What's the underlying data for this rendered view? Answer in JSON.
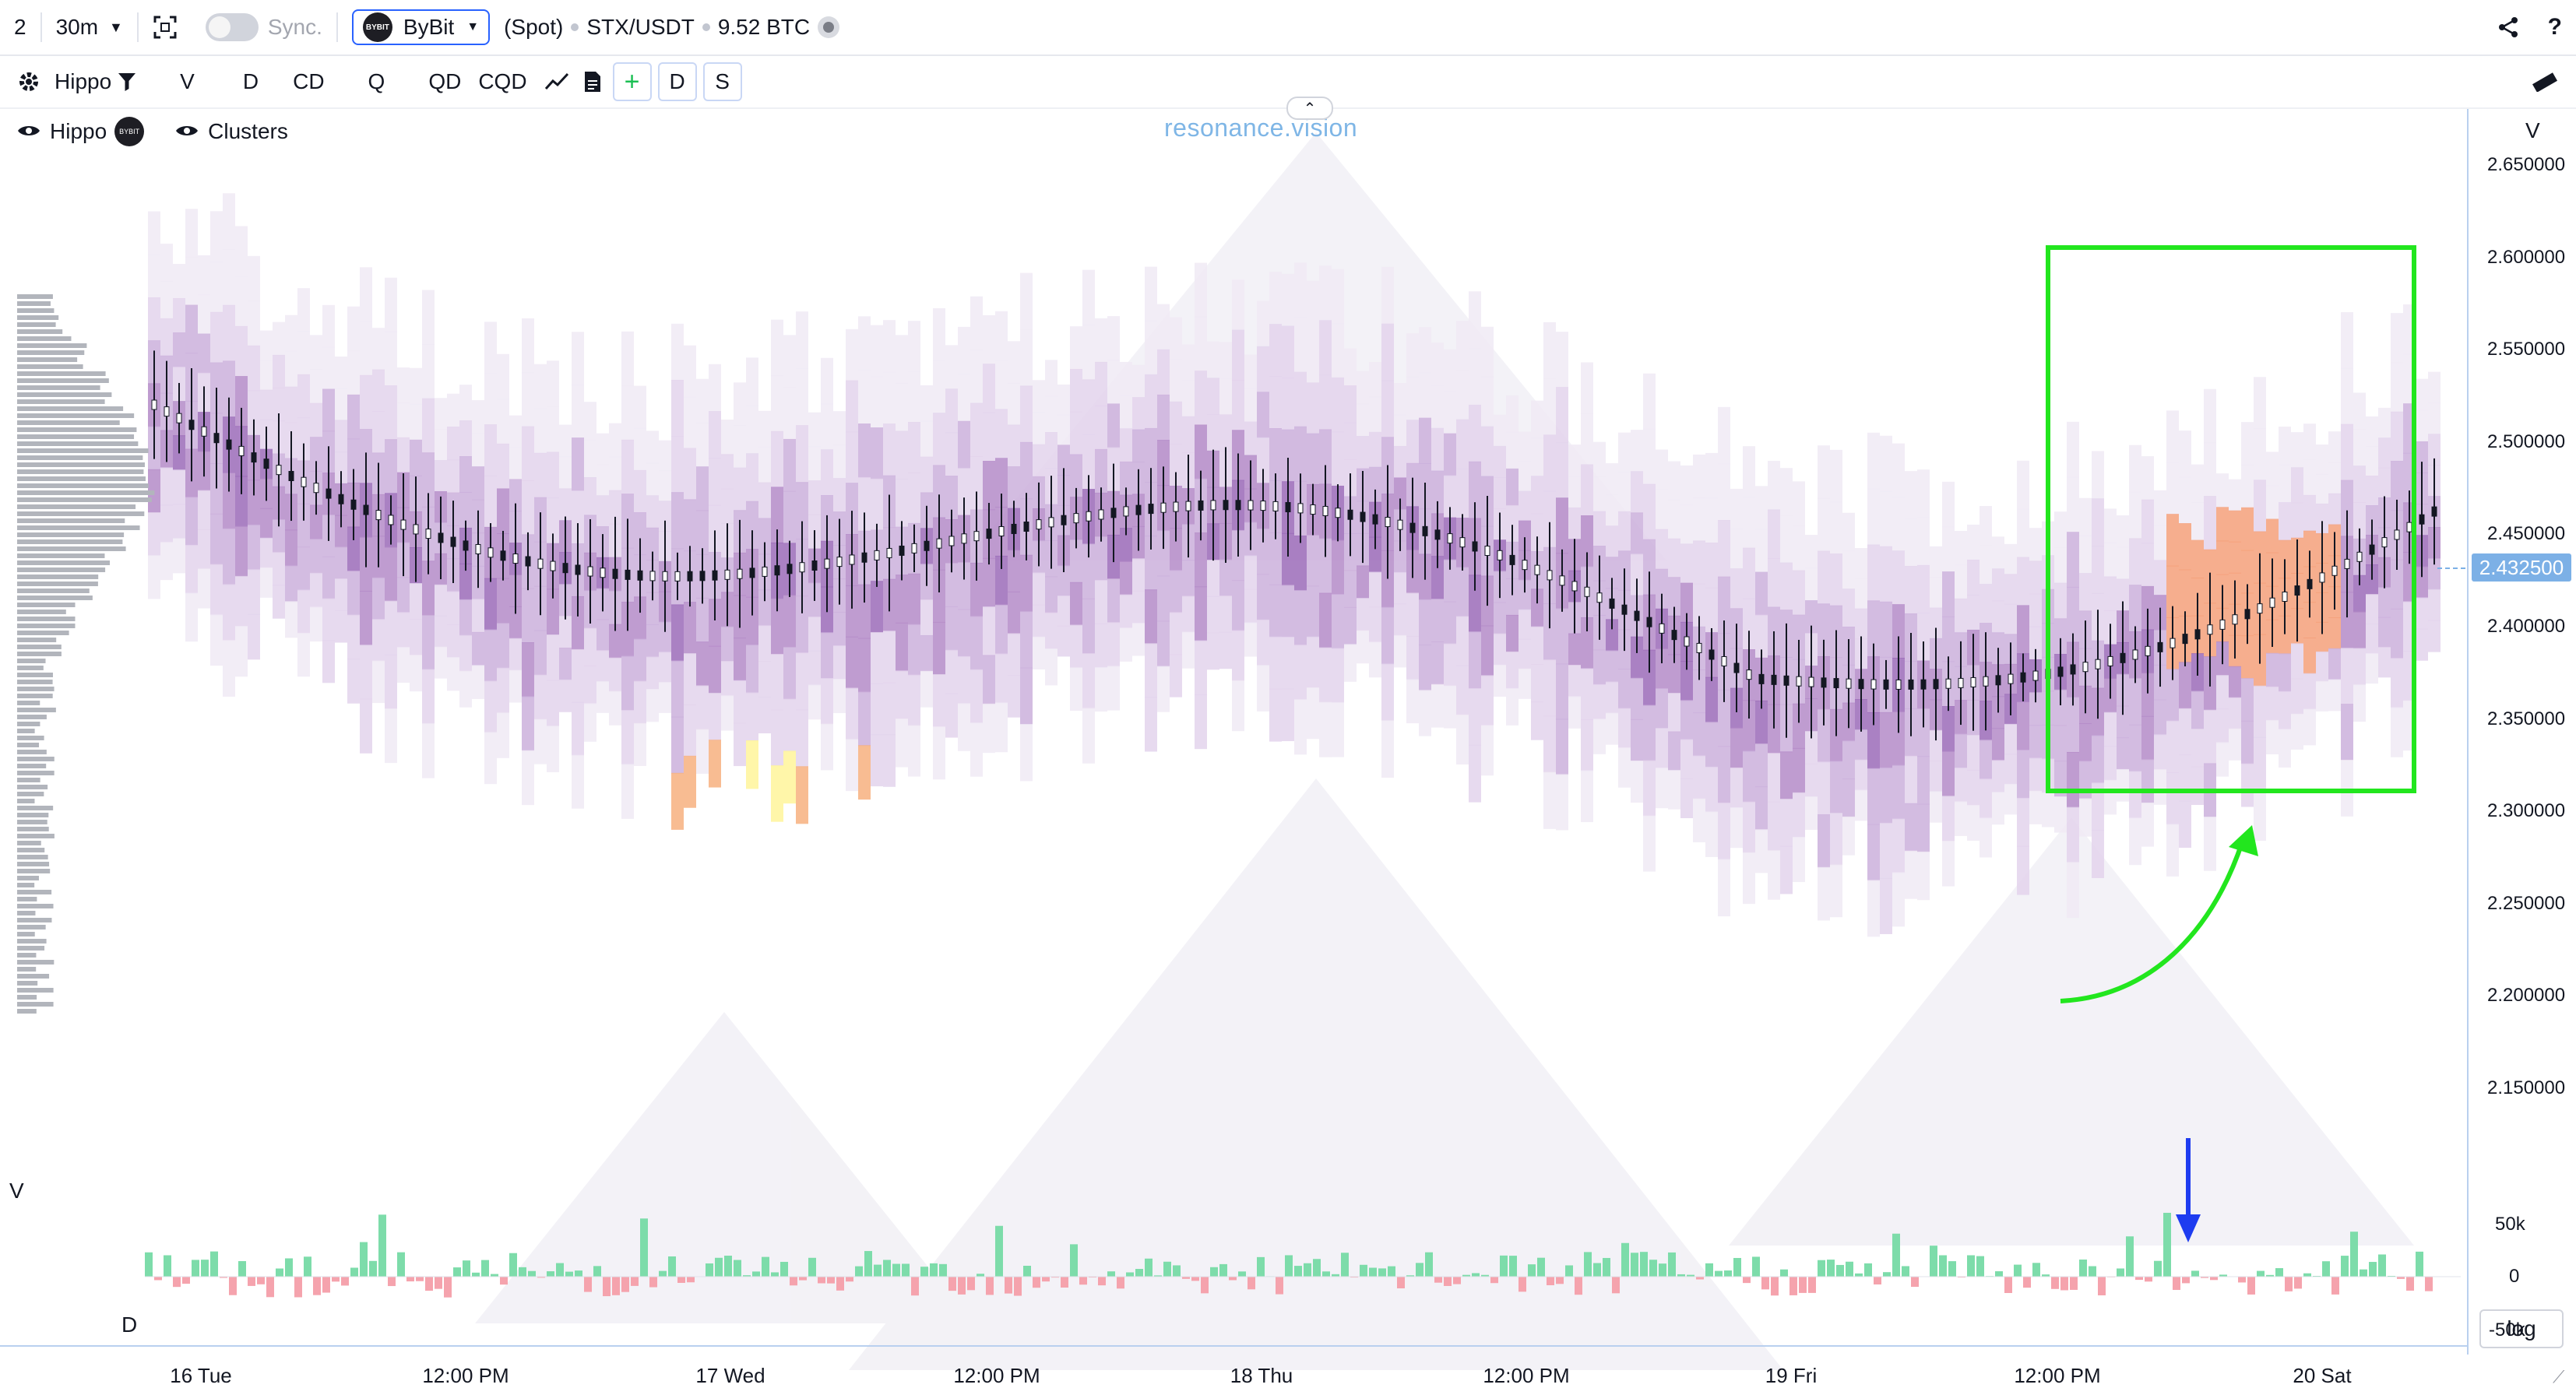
{
  "topbar": {
    "layout_count": "2",
    "interval": "30m",
    "sync_label": "Sync.",
    "exchange": "ByBit",
    "exchange_logo_text": "BYBIT",
    "market_type": "(Spot)",
    "symbol": "STX/USDT",
    "volume": "9.52 BTC",
    "help": "?"
  },
  "toolbar": {
    "template_name": "Hippo",
    "items": [
      "V",
      "D",
      "CD",
      "Q",
      "QD",
      "CQD"
    ],
    "add_label": "+",
    "d_label": "D",
    "s_label": "S"
  },
  "legend": {
    "layer1": "Hippo",
    "layer2": "Clusters"
  },
  "watermark": "resonance.vision",
  "collapse_glyph": "⌃",
  "price_axis": {
    "header": "V",
    "labels": [
      "2.650000",
      "2.600000",
      "2.550000",
      "2.500000",
      "2.450000",
      "2.400000",
      "2.350000",
      "2.300000",
      "2.250000",
      "2.200000",
      "2.150000"
    ],
    "current_price": "2.432500"
  },
  "volume_axis": {
    "labels": [
      "50k",
      "0",
      "-50k"
    ],
    "pane_top_label": "V",
    "pane_bottom_label": "D"
  },
  "time_axis": {
    "labels": [
      "16 Tue",
      "12:00 PM",
      "17 Wed",
      "12:00 PM",
      "18 Thu",
      "12:00 PM",
      "19 Fri",
      "12:00 PM",
      "20 Sat"
    ]
  },
  "log_button": "log",
  "colors": {
    "accent": "#2962ff",
    "highlight_box": "#22e61e",
    "arrow_green": "#22e61e",
    "arrow_blue": "#1e3cf0",
    "delta_up": "#7ddcaa",
    "delta_down": "#f5a3ad",
    "cluster_purple": "#9b6bb8",
    "cluster_orange": "#f4a07a",
    "cluster_yellow": "#fff59a"
  }
}
